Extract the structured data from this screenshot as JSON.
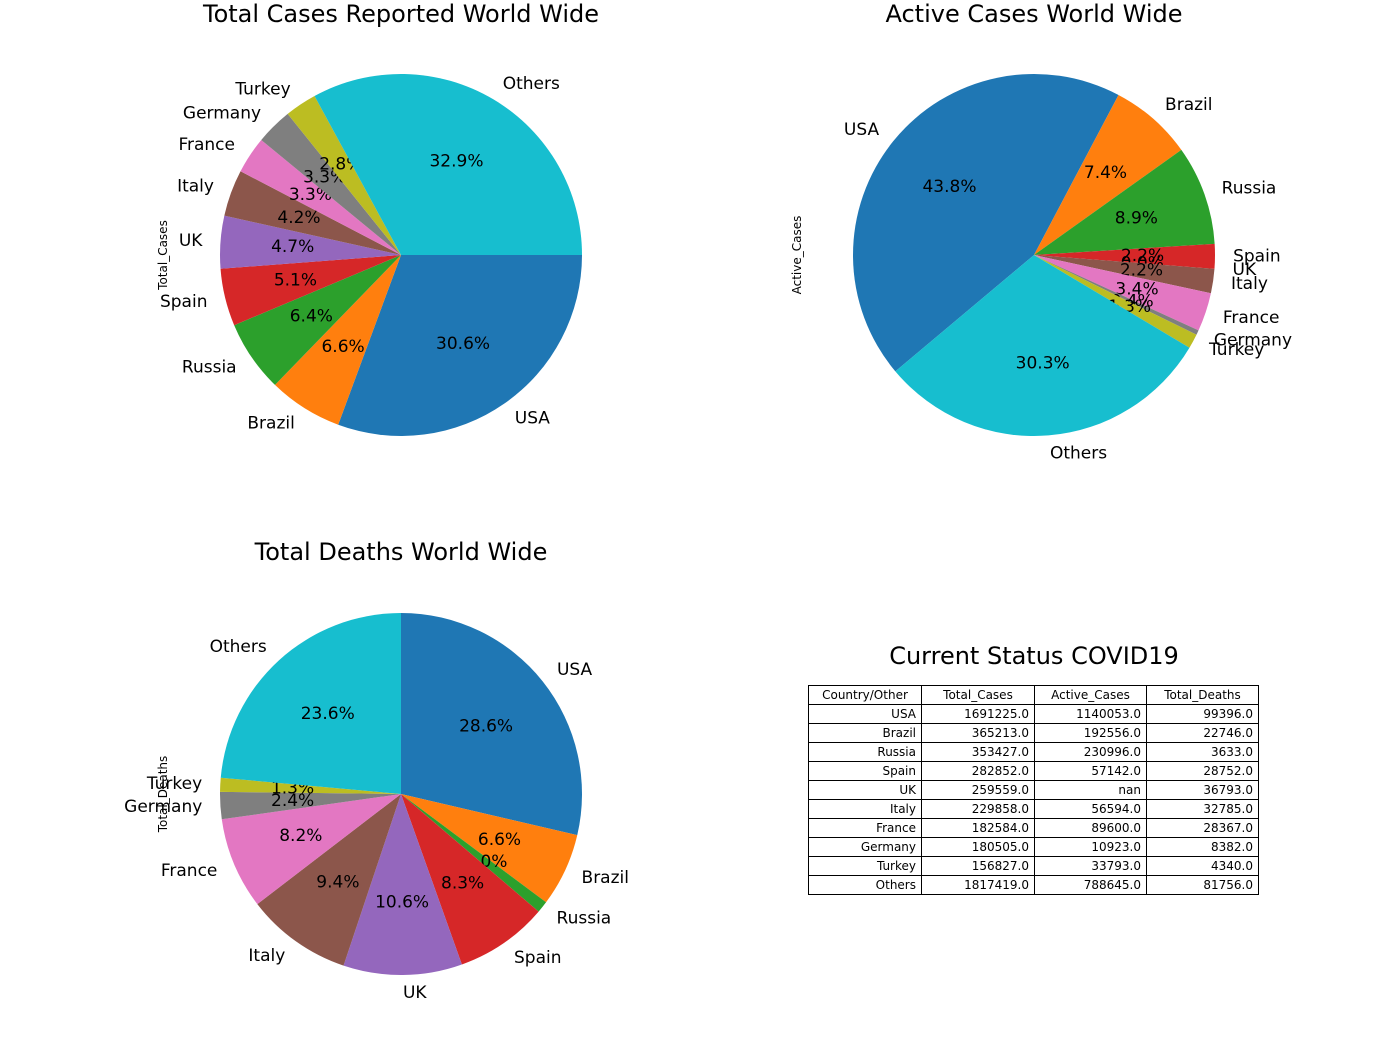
{
  "colors": {
    "USA": "#1f77b4",
    "Brazil": "#ff7f0e",
    "Russia": "#2ca02c",
    "Spain": "#d62728",
    "UK": "#9467bd",
    "Italy": "#8c564b",
    "France": "#e377c2",
    "Germany": "#7f7f7f",
    "Turkey": "#bcbd22",
    "Others": "#17becf"
  },
  "chart_data": [
    {
      "type": "pie",
      "title": "Total Cases Reported World Wide",
      "ylabel": "Total_Cases",
      "labels": [
        "USA",
        "Brazil",
        "Russia",
        "Spain",
        "UK",
        "Italy",
        "France",
        "Germany",
        "Turkey",
        "Others"
      ],
      "values": [
        1691225.0,
        365213.0,
        353427.0,
        282852.0,
        259559.0,
        229858.0,
        182584.0,
        180505.0,
        156827.0,
        1817419.0
      ],
      "pct_labels": [
        "30.6%",
        "6.6%",
        "6.4%",
        "5.1%",
        "4.7%",
        "4.2%",
        "3.3%",
        "3.3%",
        "2.8%",
        "32.9%"
      ]
    },
    {
      "type": "pie",
      "title": "Active Cases World Wide",
      "ylabel": "Active_Cases",
      "labels": [
        "USA",
        "Brazil",
        "Russia",
        "Spain",
        "UK",
        "Italy",
        "France",
        "Germany",
        "Turkey",
        "Others"
      ],
      "values": [
        1140053.0,
        192556.0,
        230996.0,
        57142.0,
        0,
        56594.0,
        89600.0,
        10923.0,
        33793.0,
        788645.0
      ],
      "pct_labels": [
        "43.8%",
        "7.4%",
        "8.9%",
        "2.2%",
        "0.0%",
        "2.2%",
        "3.4%",
        "0.4%",
        "1.3%",
        "30.3%"
      ]
    },
    {
      "type": "pie",
      "title": "Total Deaths World Wide",
      "ylabel": "Total_Deaths",
      "labels": [
        "USA",
        "Brazil",
        "Russia",
        "Spain",
        "UK",
        "Italy",
        "France",
        "Germany",
        "Turkey",
        "Others"
      ],
      "values": [
        99396.0,
        22746.0,
        3633.0,
        28752.0,
        36793.0,
        32785.0,
        28367.0,
        8382.0,
        4340.0,
        81756.0
      ],
      "pct_labels": [
        "28.6%",
        "6.6%",
        "1.0%",
        "8.3%",
        "10.6%",
        "9.4%",
        "8.2%",
        "2.4%",
        "1.3%",
        "23.6%"
      ]
    },
    {
      "type": "table",
      "title": "Current Status COVID19",
      "columns": [
        "Country/Other",
        "Total_Cases",
        "Active_Cases",
        "Total_Deaths"
      ],
      "rows": [
        [
          "USA",
          "1691225.0",
          "1140053.0",
          "99396.0"
        ],
        [
          "Brazil",
          "365213.0",
          "192556.0",
          "22746.0"
        ],
        [
          "Russia",
          "353427.0",
          "230996.0",
          "3633.0"
        ],
        [
          "Spain",
          "282852.0",
          "57142.0",
          "28752.0"
        ],
        [
          "UK",
          "259559.0",
          "nan",
          "36793.0"
        ],
        [
          "Italy",
          "229858.0",
          "56594.0",
          "32785.0"
        ],
        [
          "France",
          "182584.0",
          "89600.0",
          "28367.0"
        ],
        [
          "Germany",
          "180505.0",
          "10923.0",
          "8382.0"
        ],
        [
          "Turkey",
          "156827.0",
          "33793.0",
          "4340.0"
        ],
        [
          "Others",
          "1817419.0",
          "788645.0",
          "81756.0"
        ]
      ]
    }
  ]
}
